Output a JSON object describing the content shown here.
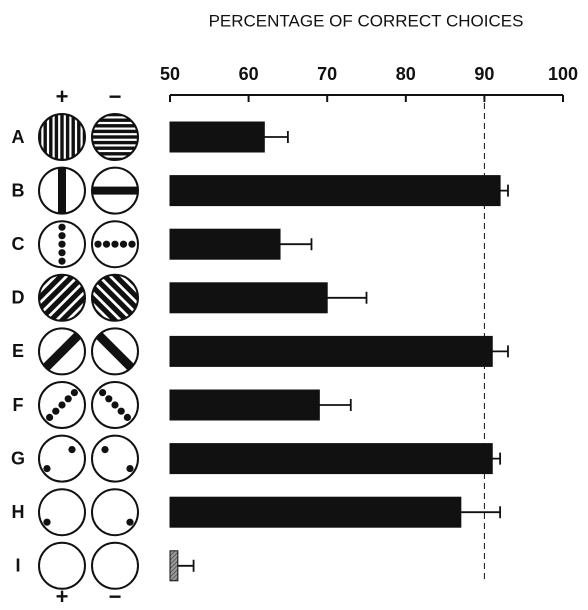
{
  "chart_data": {
    "type": "bar",
    "orientation": "horizontal",
    "title": "PERCENTAGE OF CORRECT CHOICES",
    "categories": [
      "A",
      "B",
      "C",
      "D",
      "E",
      "F",
      "G",
      "H",
      "I"
    ],
    "values": [
      62,
      92,
      64,
      70,
      91,
      69,
      91,
      87,
      51
    ],
    "errors": [
      3,
      1,
      4,
      5,
      2,
      4,
      1,
      5,
      2
    ],
    "color": "#111111",
    "xlim": [
      50,
      100
    ],
    "xticks": [
      50,
      60,
      70,
      80,
      90,
      100
    ],
    "reference_line": 90,
    "positive_label": "+",
    "negative_label": "−"
  }
}
